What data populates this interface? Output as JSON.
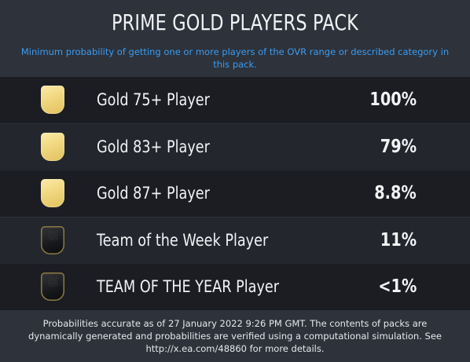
{
  "header": {
    "title": "PRIME GOLD PLAYERS PACK",
    "subtitle": "Minimum probability of getting one or more players of the OVR range or described category in this pack."
  },
  "rows": [
    {
      "card_icon": "gold-card-icon",
      "label": "Gold 75+ Player",
      "probability": "100%"
    },
    {
      "card_icon": "gold-card-icon",
      "label": "Gold 83+ Player",
      "probability": "79%"
    },
    {
      "card_icon": "gold-card-icon",
      "label": "Gold 87+ Player",
      "probability": "8.8%"
    },
    {
      "card_icon": "totw-card-icon",
      "label": "Team of the Week Player",
      "probability": "11%"
    },
    {
      "card_icon": "toty-card-icon",
      "label": "TEAM OF THE YEAR Player",
      "probability": "<1%"
    }
  ],
  "footer": {
    "disclaimer": "Probabilities accurate as of 27 January 2022 9:26 PM GMT. The contents of packs are dynamically generated and probabilities are verified using a computational simulation. See http://x.ea.com/48860 for more details."
  },
  "colors": {
    "background": "#2d323b",
    "row_dark": "#1b1d22",
    "row_light": "#23262c",
    "subtitle_blue": "#3b9cf0",
    "gold_card": "#f1d780",
    "black_card": "#17181b"
  }
}
